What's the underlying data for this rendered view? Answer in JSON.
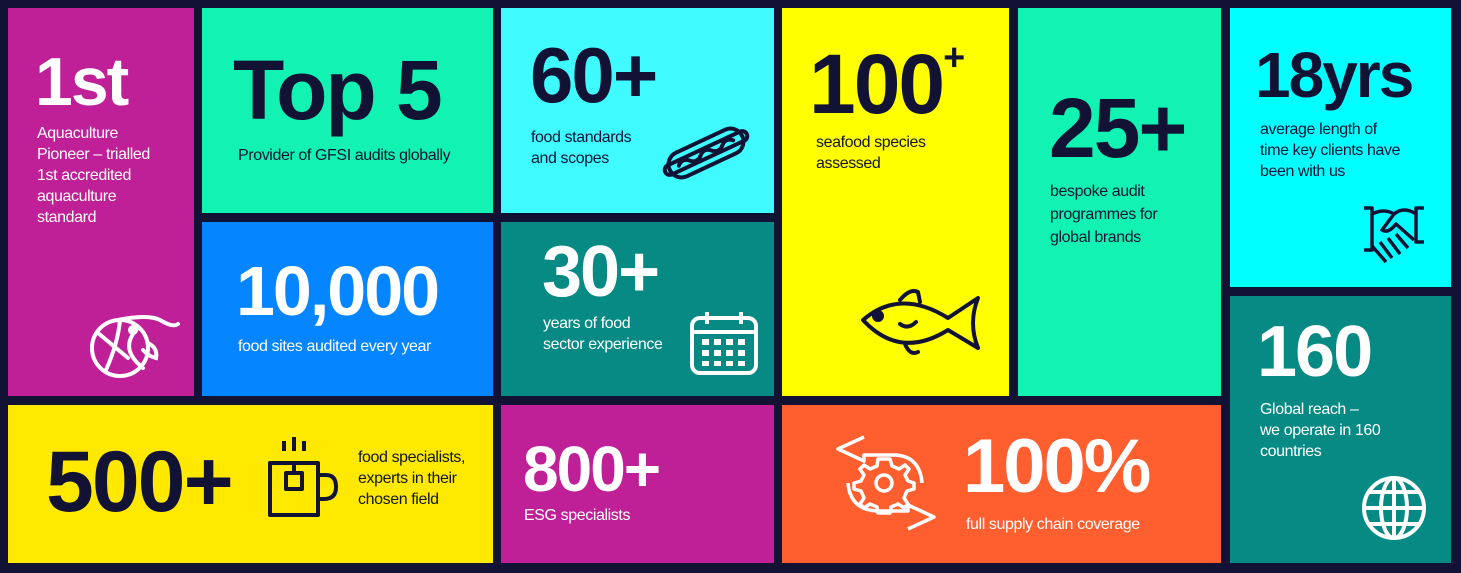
{
  "colors": {
    "background": "#121334",
    "magenta": "#bf1f97",
    "mint": "#12f2b3",
    "blue": "#0585ff",
    "cyan": "#3ffbff",
    "teal": "#078a84",
    "yellow": "#ffff00",
    "gold": "#ffe900",
    "aqua": "#00ffff",
    "orange": "#ff5e2f",
    "text_dark": "#121334"
  },
  "tiles": {
    "first": {
      "value": "1st",
      "text": "Aquaculture\nPioneer – trialled\n1st accredited\naquaculture\nstandard",
      "icon": "shrimp-icon"
    },
    "top5": {
      "value": "Top 5",
      "text": "Provider of GFSI audits globally"
    },
    "sites": {
      "value": "10,000",
      "text": "food sites audited every year"
    },
    "standards": {
      "value": "60+",
      "text": "food standards\nand scopes",
      "icon": "hotdog-icon"
    },
    "years": {
      "value": "30+",
      "text": "years of food\nsector experience",
      "icon": "calendar-icon"
    },
    "species": {
      "value": "100",
      "suffix": "+",
      "text": "seafood species\nassessed",
      "icon": "fish-icon"
    },
    "bespoke": {
      "value": "25+",
      "text": "bespoke audit\nprogrammes for\nglobal brands"
    },
    "clients": {
      "value": "18yrs",
      "text": "average length of\ntime key clients have\nbeen with us",
      "icon": "handshake-icon"
    },
    "reach": {
      "value": "160",
      "text": "Global reach –\nwe operate in 160\ncountries",
      "icon": "globe-icon"
    },
    "specialists": {
      "value": "500+",
      "text": "food specialists,\nexperts in their\nchosen field",
      "icon": "mug-icon"
    },
    "esg": {
      "value": "800+",
      "text": "ESG specialists"
    },
    "coverage": {
      "value": "100%",
      "text": "full supply chain coverage",
      "icon": "gear-cycle-icon"
    }
  }
}
